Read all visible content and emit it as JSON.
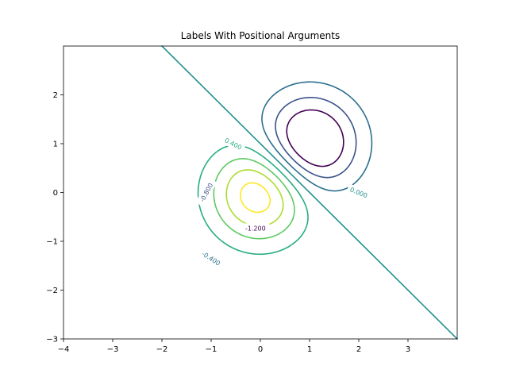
{
  "chart_data": {
    "type": "contour",
    "title": "Labels With Positional Arguments",
    "xlabel": "",
    "ylabel": "",
    "xlim": [
      -4,
      4
    ],
    "ylim": [
      -3,
      3
    ],
    "x_ticks": [
      -4,
      -3,
      -2,
      -1,
      0,
      1,
      2,
      3
    ],
    "y_ticks": [
      -3,
      -2,
      -1,
      0,
      1,
      2
    ],
    "x_tick_labels": [
      "−4",
      "−3",
      "−2",
      "−1",
      "0",
      "1",
      "2",
      "3"
    ],
    "y_tick_labels": [
      "−3",
      "−2",
      "−1",
      "0",
      "1",
      "2"
    ],
    "grid": false,
    "colormap": "viridis",
    "levels": [
      {
        "value": -1.2,
        "color": "#440154"
      },
      {
        "value": -0.8,
        "color": "#3b528b"
      },
      {
        "value": -0.4,
        "color": "#2c6e8e"
      },
      {
        "value": 0.0,
        "color": "#21918c"
      },
      {
        "value": 0.4,
        "color": "#27ad81"
      },
      {
        "value": 0.8,
        "color": "#5ec962"
      },
      {
        "value": 1.2,
        "color": "#addc30"
      },
      {
        "value": 1.6,
        "color": "#fde725"
      }
    ],
    "labels": [
      {
        "text": "-1.200",
        "x": -0.1,
        "y": -0.73,
        "color": "#440154"
      },
      {
        "text": "-0.800",
        "x": -1.1,
        "y": 0.0,
        "color": "#3b528b",
        "angle": -62
      },
      {
        "text": "-0.400",
        "x": -1.0,
        "y": -1.35,
        "color": "#2c6e8e",
        "angle": 33
      },
      {
        "text": "0.000",
        "x": 2.0,
        "y": 0.0,
        "color": "#21918c",
        "angle": 22
      },
      {
        "text": "0.400",
        "x": -0.55,
        "y": 1.0,
        "color": "#27ad81",
        "angle": 27
      }
    ]
  }
}
